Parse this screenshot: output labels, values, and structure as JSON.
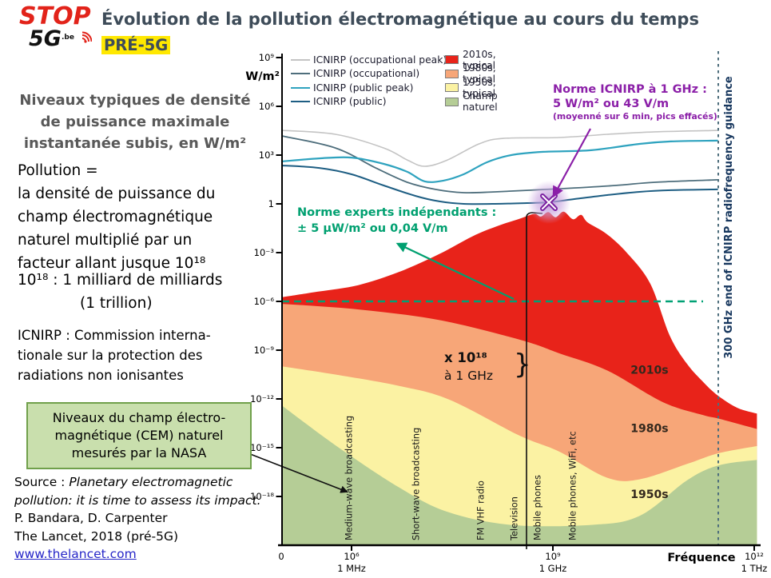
{
  "logo": {
    "stop": "STOP",
    "five_g": "5G",
    "be": ".be"
  },
  "header": {
    "title": "Évolution de la pollution électromagnétique au cours du temps",
    "badge": "PRÉ-5G"
  },
  "left_panel": {
    "intro_lines": [
      "Niveaux typiques de densité",
      "de puissance maximale",
      "instantanée subis, en W/m²"
    ],
    "pollution_lines": [
      "Pollution =",
      "la densité de puissance du",
      "champ électromagnétique",
      "naturel multiplié par un",
      "facteur allant jusque 10¹⁸"
    ],
    "trillion_line1": "10¹⁸ : 1 milliard de milliards",
    "trillion_line2": "(1 trillion)",
    "icnirp_def_lines": [
      "ICNIRP : Commission interna-",
      "tionale sur la protection des",
      "radiations non ionisantes"
    ],
    "nasa_box_lines": [
      "Niveaux du champ électro-",
      "magnétique (CEM) naturel",
      "mesurés par la NASA"
    ],
    "source": {
      "prefix": "Source : ",
      "title_italic": "Planetary electromagnetic pollution: it is time to assess its impact.",
      "authors": "P. Bandara, D. Carpenter",
      "journal": "The Lancet, 2018 (pré-5G)",
      "link": "www.thelancet.com"
    }
  },
  "legend": {
    "lines": [
      {
        "label": "ICNIRP (occupational peak)",
        "color": "#C4C4C4"
      },
      {
        "label": "ICNIRP (occupational)",
        "color": "#4E6E7C"
      },
      {
        "label": "ICNIRP (public peak)",
        "color": "#2FA3BF"
      },
      {
        "label": "ICNIRP (public)",
        "color": "#1E5E83"
      }
    ],
    "fills": [
      {
        "label": "2010s, typical",
        "color": "#E8231A"
      },
      {
        "label": "1980s, typical",
        "color": "#F7A678"
      },
      {
        "label": "1950s, typical",
        "color": "#FBF2A3"
      },
      {
        "label": "Champ naturel",
        "color": "#B5CD96"
      }
    ]
  },
  "annotations": {
    "purple": {
      "line1": "Norme ICNIRP à 1 GHz :",
      "line2": "5 W/m² ou 43 V/m",
      "line3": "(moyenné sur 6 min, pics effacés)",
      "color": "#8B1FA8"
    },
    "green": {
      "line1": "Norme experts indépendants :",
      "line2": "± 5 µW/m² ou 0,04 V/m",
      "color": "#00A070"
    },
    "multiplier": {
      "line1": "x 10¹⁸",
      "line2": "à 1 GHz"
    },
    "right_axis": "300 GHz end of ICNIRP radiofrequency guidance"
  },
  "chart_data": {
    "type": "area",
    "x_axis": {
      "scale": "log10 frequency (Hz)",
      "zero_label": "0",
      "axis_label": "Fréquence",
      "ticks": [
        {
          "exp": 6,
          "label": "10⁶",
          "sub": "1 MHz"
        },
        {
          "exp": 9,
          "label": "10⁹",
          "sub": "1 GHz"
        },
        {
          "exp": 12,
          "label": "10¹²",
          "sub": "1 THz"
        }
      ]
    },
    "y_axis": {
      "scale": "log10 power density (W/m²)",
      "unit_label": "W/m²",
      "ticks": [
        {
          "exp": 9,
          "label": "10⁹"
        },
        {
          "exp": 6,
          "label": "10⁶"
        },
        {
          "exp": 3,
          "label": "10³"
        },
        {
          "exp": 0,
          "label": "1"
        },
        {
          "exp": -3,
          "label": "10⁻³"
        },
        {
          "exp": -6,
          "label": "10⁻⁶"
        },
        {
          "exp": -9,
          "label": "10⁻⁹"
        },
        {
          "exp": -12,
          "label": "10⁻¹²"
        },
        {
          "exp": -15,
          "label": "10⁻¹⁵"
        },
        {
          "exp": -18,
          "label": "10⁻¹⁸"
        }
      ]
    },
    "areas": [
      {
        "name": "2010s, typical",
        "color": "#E8231A",
        "points": [
          [
            4.96,
            -5.75
          ],
          [
            5.5,
            -5.4
          ],
          [
            6.1,
            -5.0
          ],
          [
            6.7,
            -4.2
          ],
          [
            7.3,
            -3.1
          ],
          [
            7.8,
            -2.0
          ],
          [
            8.15,
            -1.4
          ],
          [
            8.5,
            -0.92
          ],
          [
            8.72,
            -0.62
          ],
          [
            8.82,
            -0.78
          ],
          [
            8.93,
            -0.5
          ],
          [
            9.04,
            -0.82
          ],
          [
            9.16,
            -0.48
          ],
          [
            9.3,
            -0.95
          ],
          [
            9.42,
            -0.68
          ],
          [
            9.52,
            -1.15
          ],
          [
            9.8,
            -1.85
          ],
          [
            10.1,
            -3.0
          ],
          [
            10.45,
            -4.9
          ],
          [
            10.74,
            -8.1
          ],
          [
            11.0,
            -9.85
          ],
          [
            11.25,
            -11.0
          ],
          [
            11.46,
            -11.8
          ],
          [
            11.75,
            -12.55
          ],
          [
            12.04,
            -12.9
          ]
        ]
      },
      {
        "name": "1980s, typical",
        "color": "#F7A678",
        "points": [
          [
            4.96,
            -6.15
          ],
          [
            6.12,
            -6.5
          ],
          [
            7.31,
            -7.15
          ],
          [
            8.5,
            -8.35
          ],
          [
            9.1,
            -9.2
          ],
          [
            9.81,
            -10.25
          ],
          [
            10.64,
            -12.2
          ],
          [
            11.24,
            -13.0
          ],
          [
            11.46,
            -13.2
          ],
          [
            12.04,
            -13.85
          ]
        ]
      },
      {
        "name": "1950s, typical",
        "color": "#FBF2A3",
        "points": [
          [
            4.96,
            -10.0
          ],
          [
            5.76,
            -10.5
          ],
          [
            6.71,
            -11.2
          ],
          [
            7.46,
            -12.05
          ],
          [
            8.5,
            -14.25
          ],
          [
            9.1,
            -15.25
          ],
          [
            9.81,
            -16.85
          ],
          [
            10.29,
            -16.95
          ],
          [
            11.0,
            -16.0
          ],
          [
            11.46,
            -15.35
          ],
          [
            12.04,
            -14.9
          ]
        ]
      },
      {
        "name": "Champ naturel",
        "color": "#B5CD96",
        "points": [
          [
            4.96,
            -12.4
          ],
          [
            5.76,
            -14.85
          ],
          [
            6.71,
            -17.45
          ],
          [
            7.43,
            -18.95
          ],
          [
            8.38,
            -19.75
          ],
          [
            9.57,
            -19.75
          ],
          [
            10.29,
            -19.2
          ],
          [
            11.0,
            -17.0
          ],
          [
            11.46,
            -16.1
          ],
          [
            12.04,
            -15.75
          ]
        ]
      }
    ],
    "lines": [
      {
        "name": "ICNIRP (occupational peak)",
        "color": "#C4C4C4",
        "width": 1.6,
        "points": [
          [
            4.96,
            4.52
          ],
          [
            5.76,
            4.28
          ],
          [
            6.48,
            3.44
          ],
          [
            6.83,
            2.7
          ],
          [
            7.09,
            2.31
          ],
          [
            7.43,
            2.7
          ],
          [
            7.9,
            3.69
          ],
          [
            8.26,
            4.03
          ],
          [
            9.1,
            4.08
          ],
          [
            9.81,
            4.28
          ],
          [
            10.52,
            4.43
          ],
          [
            11.46,
            4.52
          ]
        ]
      },
      {
        "name": "ICNIRP (occupational)",
        "color": "#4E6E7C",
        "width": 1.8,
        "points": [
          [
            4.96,
            4.18
          ],
          [
            5.76,
            3.44
          ],
          [
            6.36,
            2.21
          ],
          [
            6.83,
            1.33
          ],
          [
            7.25,
            0.89
          ],
          [
            7.67,
            0.69
          ],
          [
            8.14,
            0.74
          ],
          [
            9.1,
            0.93
          ],
          [
            9.93,
            1.13
          ],
          [
            10.52,
            1.33
          ],
          [
            11.46,
            1.48
          ]
        ]
      },
      {
        "name": "ICNIRP (public peak)",
        "color": "#2FA3BF",
        "width": 2.2,
        "points": [
          [
            4.96,
            2.61
          ],
          [
            5.52,
            2.8
          ],
          [
            6.0,
            2.85
          ],
          [
            6.48,
            2.46
          ],
          [
            6.83,
            1.97
          ],
          [
            7.09,
            1.38
          ],
          [
            7.37,
            1.43
          ],
          [
            7.67,
            1.82
          ],
          [
            8.02,
            2.56
          ],
          [
            8.38,
            3.0
          ],
          [
            8.86,
            3.2
          ],
          [
            9.57,
            3.3
          ],
          [
            10.29,
            3.69
          ],
          [
            10.76,
            3.84
          ],
          [
            11.46,
            3.89
          ]
        ]
      },
      {
        "name": "ICNIRP (public)",
        "color": "#1E5E83",
        "width": 2.0,
        "points": [
          [
            4.96,
            2.36
          ],
          [
            5.52,
            2.21
          ],
          [
            6.0,
            1.82
          ],
          [
            6.48,
            1.13
          ],
          [
            6.95,
            0.49
          ],
          [
            7.31,
            0.15
          ],
          [
            7.67,
            0.0
          ],
          [
            8.14,
            0.0
          ],
          [
            8.62,
            0.05
          ],
          [
            8.94,
            0.1
          ],
          [
            9.33,
            0.3
          ],
          [
            9.81,
            0.54
          ],
          [
            10.29,
            0.74
          ],
          [
            10.76,
            0.84
          ],
          [
            11.46,
            0.89
          ]
        ]
      }
    ],
    "reference_lines": [
      {
        "name": "norme-experts",
        "orientation": "horizontal",
        "value_exp": -6,
        "color": "#00A175",
        "style": "dashed"
      },
      {
        "name": "300-ghz-limit",
        "orientation": "vertical",
        "freq_exp": 11.46,
        "color": "#4E6E7C",
        "style": "dashed"
      }
    ],
    "marker": {
      "name": "icnirp-1ghz-point",
      "freq_exp": 8.94,
      "value_exp": 0.1,
      "color": "#7B22A0"
    },
    "vertical_labels": [
      {
        "freq_exp": 5.96,
        "text": "Medium-wave broadcasting"
      },
      {
        "freq_exp": 6.96,
        "text": "Short-wave broadcasting"
      },
      {
        "freq_exp": 7.92,
        "text": "FM VHF radio"
      },
      {
        "freq_exp": 8.42,
        "text": "Television"
      },
      {
        "freq_exp": 8.77,
        "text": "Mobile phones"
      },
      {
        "freq_exp": 9.29,
        "text": "Mobile phones, WiFi, etc"
      }
    ],
    "band_labels": [
      {
        "freq_exp": 10.44,
        "value_exp": -10.2,
        "text": "2010s"
      },
      {
        "freq_exp": 10.44,
        "value_exp": -13.8,
        "text": "1980s"
      },
      {
        "freq_exp": 10.44,
        "value_exp": -17.85,
        "text": "1950s"
      }
    ]
  }
}
